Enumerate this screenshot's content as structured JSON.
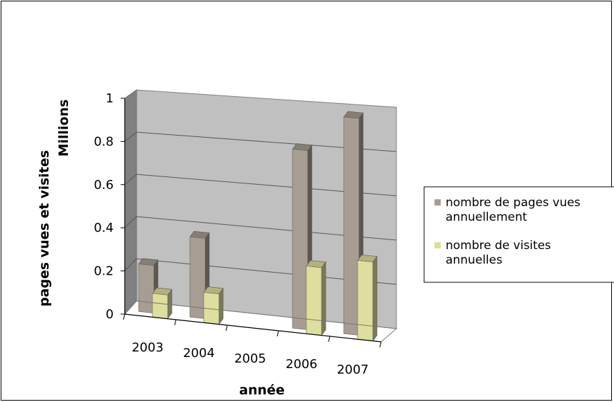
{
  "chart_data": {
    "type": "bar",
    "title": "",
    "xlabel": "année",
    "ylabel": "pages vues et visites",
    "ylabel_unit": "Millions",
    "categories": [
      "2003",
      "2004",
      "2005",
      "2006",
      "2007"
    ],
    "y_ticks": [
      "0",
      "0.2",
      "0.4",
      "0.6",
      "0.8",
      "1"
    ],
    "ylim": [
      0,
      1
    ],
    "grid": true,
    "legend_position": "right",
    "series": [
      {
        "name": "nombre de pages vues annuellement",
        "legend_lines": [
          "nombre de pages vues",
          "annuellement"
        ],
        "color": "#a89d92",
        "values": [
          0.22,
          0.37,
          0,
          0.82,
          0.99
        ]
      },
      {
        "name": "nombre de visites annuelles",
        "legend_lines": [
          "nombre de visites",
          "annuelles"
        ],
        "color": "#dede9e",
        "values": [
          0.11,
          0.14,
          0,
          0.31,
          0.36
        ]
      }
    ]
  }
}
